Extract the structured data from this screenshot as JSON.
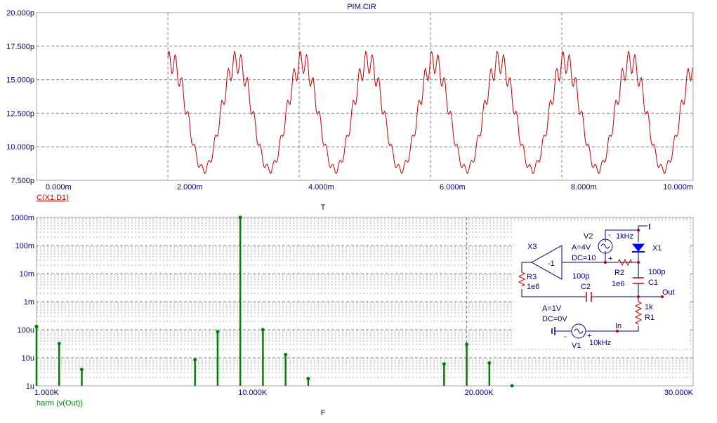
{
  "colors": {
    "plot_border": "#a0a0a0",
    "grid": "#808080",
    "label_text": "#000080",
    "time_trace": "#c00000",
    "spectrum_trace": "#008000",
    "schematic_wire": "#000080",
    "schematic_node": "#c00000",
    "schematic_component": "#c00000",
    "diode_fill": "#0000ff"
  },
  "chart_data": [
    {
      "type": "line",
      "title": "PIM.CIR",
      "xlabel": "T",
      "series": [
        {
          "name": "C(X1.D1)",
          "description": "periodic ripple: 1 kHz fundamental with 10 kHz modulation, starting at 2.000m"
        }
      ],
      "x_start": 0.002,
      "x_end": 0.01,
      "y_min_value": 8e-12,
      "y_max_value": 1.71e-11,
      "xlim": [
        0,
        0.01
      ],
      "ylim": [
        7.5e-12,
        2e-11
      ],
      "x_ticks": [
        0,
        0.002,
        0.004,
        0.006,
        0.008,
        0.01
      ],
      "x_tick_labels": [
        "0.000m",
        "2.000m",
        "4.000m",
        "6.000m",
        "8.000m",
        "10.000m"
      ],
      "y_ticks": [
        7.5e-12,
        1e-11,
        1.25e-11,
        1.5e-11,
        1.75e-11,
        2e-11
      ],
      "y_tick_labels": [
        "7.500p",
        "10.000p",
        "12.500p",
        "15.000p",
        "17.500p",
        "20.000p"
      ],
      "grid": true
    },
    {
      "type": "bar",
      "xlabel": "F",
      "yscale": "log",
      "series": [
        {
          "name": "harm (v(Out))",
          "x": [
            1000,
            2000,
            3000,
            8000,
            9000,
            10000,
            11000,
            12000,
            13000,
            19000,
            20000,
            21000,
            22000
          ],
          "values": [
            0.00013,
            3.2e-05,
            3.8e-06,
            8.5e-06,
            8.5e-05,
            1.0,
            0.0001,
            1.3e-05,
            1.8e-06,
            6e-06,
            3e-05,
            6.5e-06,
            1e-06
          ]
        }
      ],
      "xlim": [
        1000,
        30000
      ],
      "ylim": [
        1e-06,
        1
      ],
      "x_ticks": [
        1000,
        10000,
        20000,
        30000
      ],
      "x_tick_labels": [
        "1.000K",
        "10.000K",
        "20.000K",
        "30.000K"
      ],
      "y_ticks": [
        1e-06,
        1e-05,
        0.0001,
        0.001,
        0.01,
        0.1,
        1
      ],
      "y_tick_labels": [
        "1u",
        "10u",
        "100u",
        "1m",
        "10m",
        "100m",
        "1000m"
      ],
      "grid": true
    }
  ],
  "schematic": {
    "X3": "X3",
    "X3_gain": "-1",
    "V2": "V2",
    "V2_amp": "A=4V",
    "V2_dc": "DC=10",
    "V2_freq": "1kHz",
    "X1": "X1",
    "R2": "R2",
    "R2_value": "1e6",
    "R3": "R3",
    "R3_value": "1e6",
    "C1": "C1",
    "C1_value": "100p",
    "C2": "C2",
    "C2_value": "100p",
    "R1": "R1",
    "R1_value": "1k",
    "V1": "V1",
    "V1_amp": "A=1V",
    "V1_dc": "DC=0V",
    "V1_freq": "10kHz",
    "node_in": "In",
    "node_out": "Out",
    "plus": "+",
    "minus": "-"
  }
}
